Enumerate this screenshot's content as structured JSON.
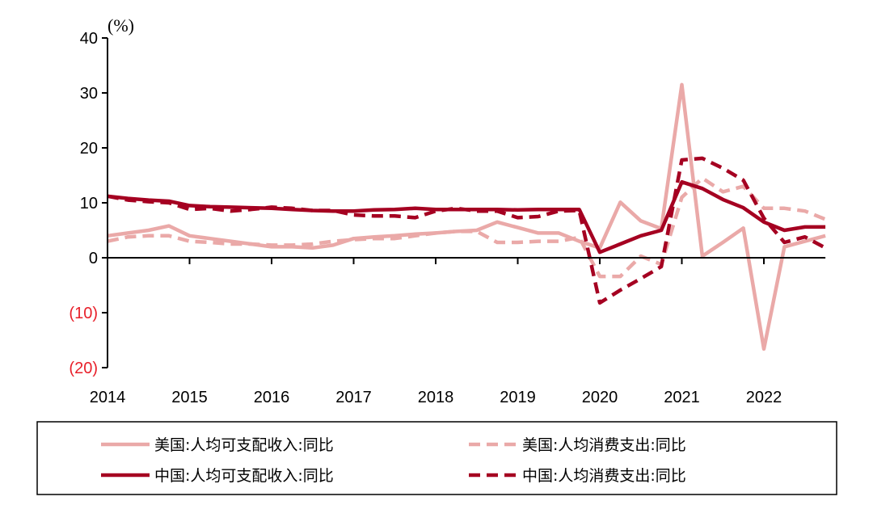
{
  "chart_data": {
    "type": "line",
    "ylabel": "(%)",
    "ylim": [
      -20,
      40
    ],
    "xlim": [
      2014,
      2022.75
    ],
    "grid": false,
    "legend_placement": "bottom",
    "yticks": [
      {
        "value": 40,
        "label": "40"
      },
      {
        "value": 30,
        "label": "30"
      },
      {
        "value": 20,
        "label": "20"
      },
      {
        "value": 10,
        "label": "10"
      },
      {
        "value": 0,
        "label": "0"
      },
      {
        "value": -10,
        "label": "(10)"
      },
      {
        "value": -20,
        "label": "(20)"
      }
    ],
    "negative_tick_color": "#e8202a",
    "xticks": [
      "2014",
      "2015",
      "2016",
      "2017",
      "2018",
      "2019",
      "2020",
      "2021",
      "2022"
    ],
    "x": [
      2014,
      2014.25,
      2014.5,
      2014.75,
      2015,
      2015.25,
      2015.5,
      2015.75,
      2016,
      2016.25,
      2016.5,
      2016.75,
      2017,
      2017.25,
      2017.5,
      2017.75,
      2018,
      2018.25,
      2018.5,
      2018.75,
      2019,
      2019.25,
      2019.5,
      2019.75,
      2020,
      2020.25,
      2020.5,
      2020.75,
      2021,
      2021.25,
      2021.5,
      2021.75,
      2022,
      2022.25,
      2022.5,
      2022.75
    ],
    "series": [
      {
        "name": "美国:人均可支配收入:同比",
        "color": "#eaa9a8",
        "dash": false,
        "values": [
          4,
          4.5,
          5,
          5.8,
          4,
          3.5,
          3,
          2.5,
          2,
          2,
          1.8,
          2.3,
          3.5,
          3.8,
          4,
          4.3,
          4.5,
          4.8,
          5,
          6.5,
          5.5,
          4.5,
          4.5,
          3,
          1.8,
          10.1,
          6.7,
          5.3,
          31.5,
          0.3,
          2.8,
          5.4,
          -16.6,
          2,
          3,
          4
        ]
      },
      {
        "name": "美国:人均消费支出:同比",
        "color": "#eaa9a8",
        "dash": true,
        "values": [
          3,
          3.8,
          4,
          4,
          3,
          2.8,
          2.5,
          2.5,
          2.3,
          2.3,
          2.5,
          3,
          3.3,
          3.5,
          3.5,
          4,
          4.5,
          4.8,
          4.8,
          2.8,
          2.8,
          3,
          3,
          3.7,
          -3.4,
          -3.4,
          0.3,
          -1.2,
          11,
          14.5,
          12,
          13,
          9,
          9,
          8.5,
          7
        ]
      },
      {
        "name": "中国:人均可支配收入:同比",
        "color": "#a50021",
        "dash": false,
        "values": [
          11.2,
          10.8,
          10.5,
          10.3,
          9.5,
          9.3,
          9.2,
          9.1,
          9,
          8.8,
          8.6,
          8.5,
          8.5,
          8.7,
          8.8,
          9,
          8.8,
          8.8,
          8.8,
          8.8,
          8.7,
          8.8,
          8.8,
          8.8,
          1,
          2.5,
          4,
          5,
          13.8,
          12.6,
          10.6,
          9.1,
          6.5,
          5,
          5.6,
          5.6
        ]
      },
      {
        "name": "中国:人均消费支出:同比",
        "color": "#a50021",
        "dash": true,
        "values": [
          11.2,
          10.5,
          10.2,
          10,
          8.8,
          9,
          8.5,
          8.8,
          9.2,
          9,
          8.6,
          8.6,
          7.8,
          7.6,
          7.6,
          7.3,
          8.5,
          9,
          8.5,
          8.5,
          7.3,
          7.5,
          8.5,
          8.6,
          -8.2,
          -5.9,
          -3.8,
          -1.6,
          17.8,
          18.1,
          16.3,
          14.1,
          7.2,
          2.8,
          3.8,
          1.8
        ]
      }
    ]
  }
}
